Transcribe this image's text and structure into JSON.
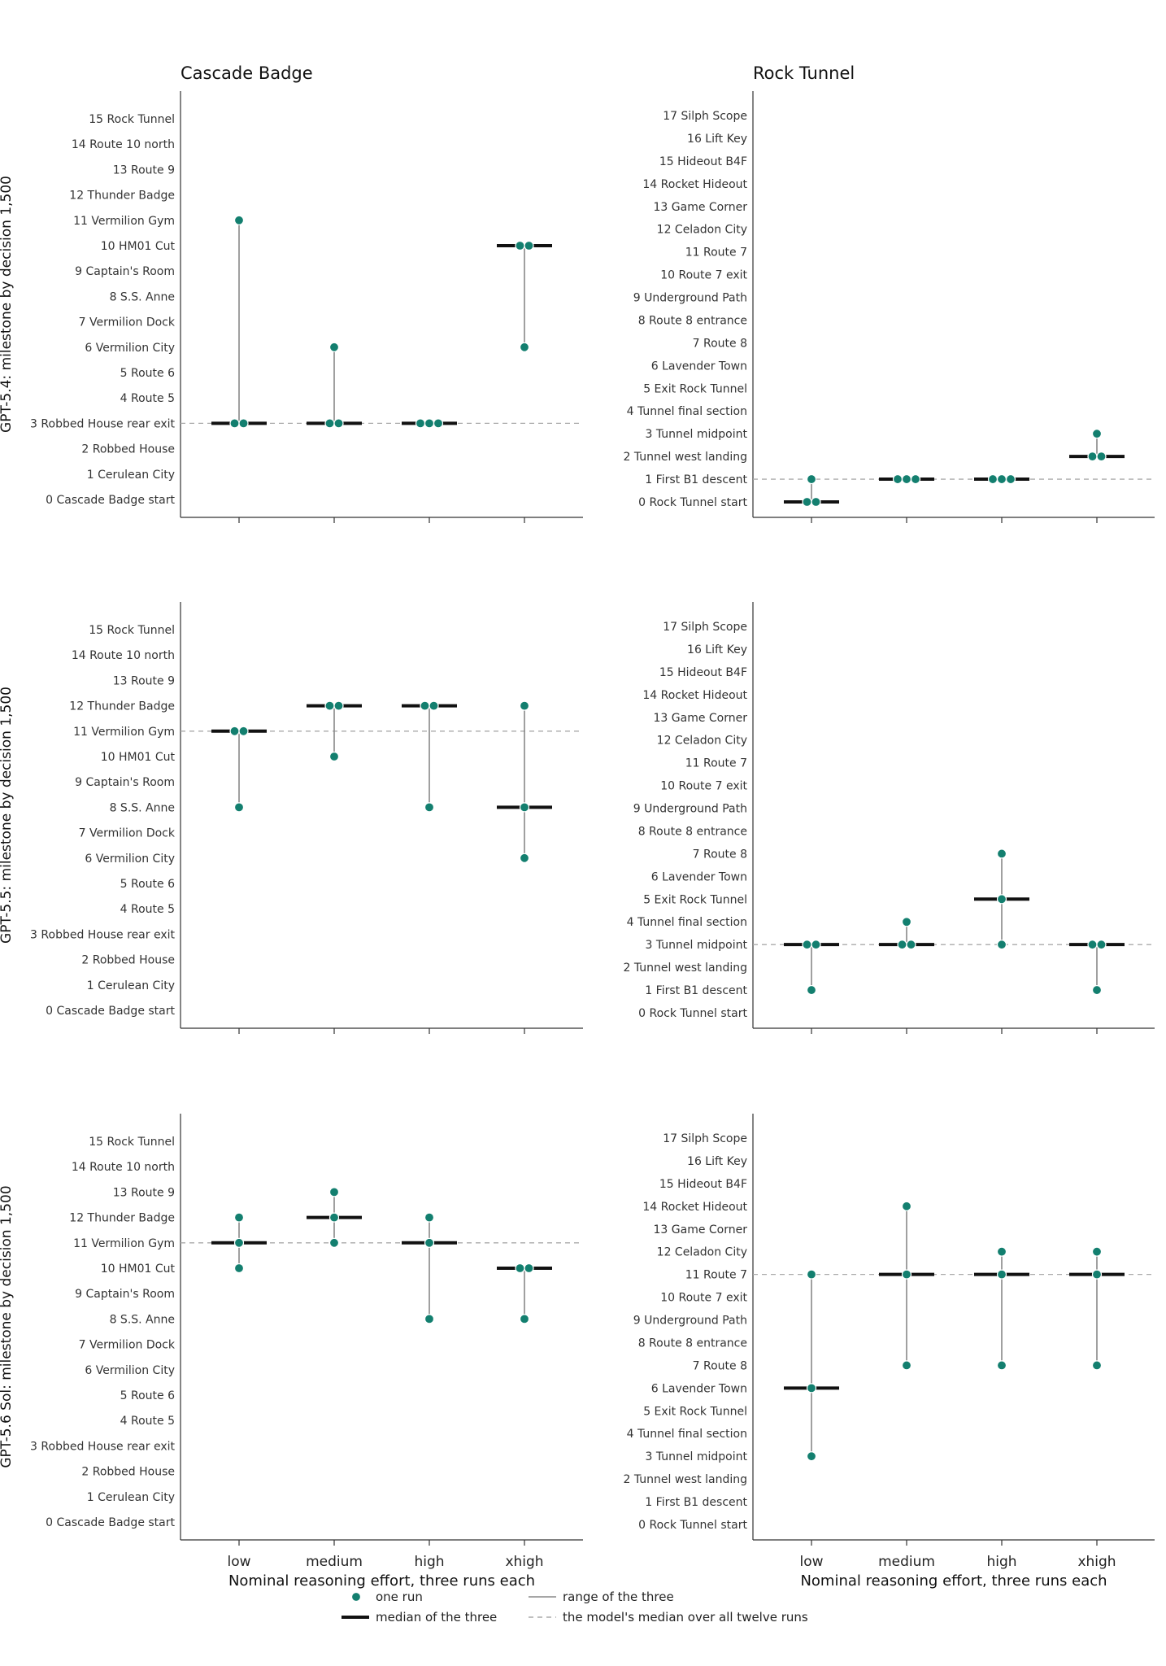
{
  "colors": {
    "run": "#137f6f",
    "median": "#111111",
    "range": "#888888",
    "overall": "#aaaaaa"
  },
  "columns": [
    {
      "title": "Cascade Badge",
      "milestones": [
        "0  Cascade Badge start",
        "1  Cerulean City",
        "2  Robbed House",
        "3  Robbed House rear exit",
        "4  Route 5",
        "5  Route 6",
        "6  Vermilion City",
        "7  Vermilion Dock",
        "8  S.S. Anne",
        "9  Captain's Room",
        "10  HM01 Cut",
        "11  Vermilion Gym",
        "12  Thunder Badge",
        "13  Route 9",
        "14  Route 10 north",
        "15  Rock Tunnel"
      ]
    },
    {
      "title": "Rock Tunnel",
      "milestones": [
        "0  Rock Tunnel start",
        "1  First B1 descent",
        "2  Tunnel west landing",
        "3  Tunnel midpoint",
        "4  Tunnel final section",
        "5  Exit Rock Tunnel",
        "6  Lavender Town",
        "7  Route 8",
        "8  Route 8 entrance",
        "9  Underground Path",
        "10  Route 7 exit",
        "11  Route 7",
        "12  Celadon City",
        "13  Game Corner",
        "14  Rocket Hideout",
        "15  Hideout B4F",
        "16  Lift Key",
        "17  Silph Scope"
      ]
    }
  ],
  "rows": [
    {
      "ylabel": "GPT-5.4: milestone by decision 1,500"
    },
    {
      "ylabel": "GPT-5.5: milestone by decision 1,500"
    },
    {
      "ylabel": "GPT-5.6 Sol: milestone by decision 1,500"
    }
  ],
  "xlabel": "Nominal reasoning effort, three runs each",
  "legend": {
    "run": "one run",
    "median": "median of the three",
    "range": "range of the three",
    "overall": "the model's median over all twelve runs"
  },
  "chart_data": [
    {
      "type": "scatter",
      "model": "GPT-5.4",
      "segment": "Cascade Badge",
      "categories": [
        "low",
        "medium",
        "high",
        "xhigh"
      ],
      "series": [
        {
          "values": [
            [
              3,
              3,
              11
            ],
            [
              3,
              3,
              6
            ],
            [
              3,
              3,
              3
            ],
            [
              6,
              10,
              10
            ]
          ]
        }
      ],
      "medians": [
        3,
        3,
        3,
        10
      ],
      "overall_median": 3,
      "ylim": [
        0,
        15
      ]
    },
    {
      "type": "scatter",
      "model": "GPT-5.4",
      "segment": "Rock Tunnel",
      "categories": [
        "low",
        "medium",
        "high",
        "xhigh"
      ],
      "series": [
        {
          "values": [
            [
              0,
              0,
              1
            ],
            [
              1,
              1,
              1
            ],
            [
              1,
              1,
              1
            ],
            [
              2,
              2,
              3
            ]
          ]
        }
      ],
      "medians": [
        0,
        1,
        1,
        2
      ],
      "overall_median": 1,
      "ylim": [
        0,
        17
      ]
    },
    {
      "type": "scatter",
      "model": "GPT-5.5",
      "segment": "Cascade Badge",
      "categories": [
        "low",
        "medium",
        "high",
        "xhigh"
      ],
      "series": [
        {
          "values": [
            [
              8,
              11,
              11
            ],
            [
              10,
              12,
              12
            ],
            [
              8,
              12,
              12
            ],
            [
              6,
              8,
              12
            ]
          ]
        }
      ],
      "medians": [
        11,
        12,
        12,
        8
      ],
      "overall_median": 11,
      "ylim": [
        0,
        15
      ]
    },
    {
      "type": "scatter",
      "model": "GPT-5.5",
      "segment": "Rock Tunnel",
      "categories": [
        "low",
        "medium",
        "high",
        "xhigh"
      ],
      "series": [
        {
          "values": [
            [
              1,
              3,
              3
            ],
            [
              3,
              3,
              4
            ],
            [
              3,
              5,
              7
            ],
            [
              1,
              3,
              3
            ]
          ]
        }
      ],
      "medians": [
        3,
        3,
        5,
        3
      ],
      "overall_median": 3,
      "ylim": [
        0,
        17
      ]
    },
    {
      "type": "scatter",
      "model": "GPT-5.6 Sol",
      "segment": "Cascade Badge",
      "categories": [
        "low",
        "medium",
        "high",
        "xhigh"
      ],
      "series": [
        {
          "values": [
            [
              10,
              11,
              12
            ],
            [
              11,
              12,
              13
            ],
            [
              8,
              11,
              12
            ],
            [
              8,
              10,
              10
            ]
          ]
        }
      ],
      "medians": [
        11,
        12,
        11,
        10
      ],
      "overall_median": 11,
      "ylim": [
        0,
        15
      ]
    },
    {
      "type": "scatter",
      "model": "GPT-5.6 Sol",
      "segment": "Rock Tunnel",
      "categories": [
        "low",
        "medium",
        "high",
        "xhigh"
      ],
      "series": [
        {
          "values": [
            [
              3,
              6,
              11
            ],
            [
              7,
              11,
              14
            ],
            [
              7,
              11,
              12
            ],
            [
              7,
              11,
              12
            ]
          ]
        }
      ],
      "medians": [
        6,
        11,
        11,
        11
      ],
      "overall_median": 11,
      "ylim": [
        0,
        17
      ]
    }
  ]
}
